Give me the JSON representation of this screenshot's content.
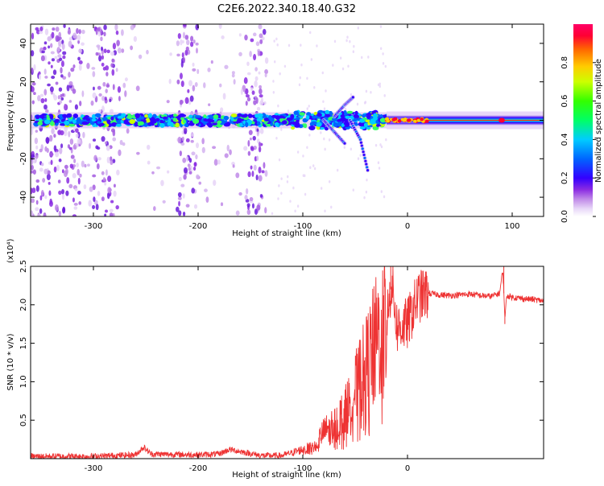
{
  "page_title": "C2E6.2022.340.18.40.G32",
  "chart_data": [
    {
      "type": "heatmap",
      "title": "C2E6.2022.340.18.40.G32",
      "xlabel": "Height of straight line (km)",
      "ylabel": "Frequency (Hz)",
      "xlim": [
        -360,
        130
      ],
      "ylim": [
        -50,
        50
      ],
      "xticks": [
        -300,
        -200,
        -100,
        0,
        100
      ],
      "yticks": [
        -40,
        -20,
        0,
        20,
        40
      ],
      "grid": false,
      "colorbar": {
        "label": "Normalized spectral amplitude",
        "range": [
          0.0,
          1.0
        ],
        "ticks": [
          "0.0",
          "0.2",
          "0.4",
          "0.6",
          "0.8"
        ],
        "colormap": [
          "#ffffff",
          "#d7b8f0",
          "#8a2be2",
          "#3300ff",
          "#0066ff",
          "#00ccff",
          "#00ff66",
          "#33ff00",
          "#ccff00",
          "#ffcc00",
          "#ff6600",
          "#ff0033",
          "#ff0066"
        ]
      },
      "features": {
        "central_line_frequency_hz": 0,
        "noise_band_columns_km": [
          [
            -360,
            -310
          ],
          [
            -300,
            -275
          ],
          [
            -220,
            -200
          ],
          [
            -155,
            -135
          ]
        ],
        "broadband_noise_region_km": [
          -360,
          -130
        ],
        "dispersed_branches": [
          {
            "x_km": [
              -80,
              -70,
              -60
            ],
            "y_hz": [
              0,
              -6,
              -12
            ]
          },
          {
            "x_km": [
              -55,
              -45,
              -38
            ],
            "y_hz": [
              0,
              -10,
              -26
            ]
          },
          {
            "x_km": [
              -70,
              -60,
              -52
            ],
            "y_hz": [
              2,
              8,
              12
            ]
          }
        ],
        "strong_signal_region_km": [
          -20,
          130
        ]
      }
    },
    {
      "type": "line",
      "xlabel": "Height of straight line (km)",
      "ylabel": "SNR (10 * v/v)",
      "y_scale_label": "(x10⁴)",
      "y_multiplier": 10000,
      "xlim": [
        -360,
        130
      ],
      "ylim": [
        0,
        2.5
      ],
      "xticks": [
        -300,
        -200,
        -100,
        0
      ],
      "yticks": [
        0.5,
        1.0,
        1.5,
        2.0,
        2.5
      ],
      "grid": false,
      "color": "#ee3333",
      "series": [
        {
          "x": [
            -360,
            -300,
            -260,
            -252,
            -245,
            -200,
            -180,
            -170,
            -140,
            -120,
            -100,
            -90,
            -80,
            -70,
            -60,
            -50,
            -40,
            -30,
            -20,
            -15,
            -10,
            0,
            10,
            20,
            30,
            40,
            50,
            60,
            70,
            80,
            88,
            91,
            93,
            95,
            100,
            110,
            120,
            130
          ],
          "y": [
            0.03,
            0.03,
            0.05,
            0.15,
            0.06,
            0.05,
            0.06,
            0.12,
            0.04,
            0.04,
            0.12,
            0.15,
            0.35,
            0.45,
            0.6,
            0.9,
            1.2,
            1.55,
            1.8,
            2.3,
            1.7,
            1.75,
            2.1,
            2.15,
            2.13,
            2.12,
            2.13,
            2.14,
            2.12,
            2.11,
            2.15,
            2.45,
            1.85,
            2.12,
            2.1,
            2.08,
            2.07,
            2.05
          ]
        }
      ],
      "spikes": [
        {
          "x": -16,
          "y": 2.55
        },
        {
          "x": 92,
          "y": 2.5
        },
        {
          "x": 93,
          "y": 1.75
        }
      ]
    }
  ]
}
